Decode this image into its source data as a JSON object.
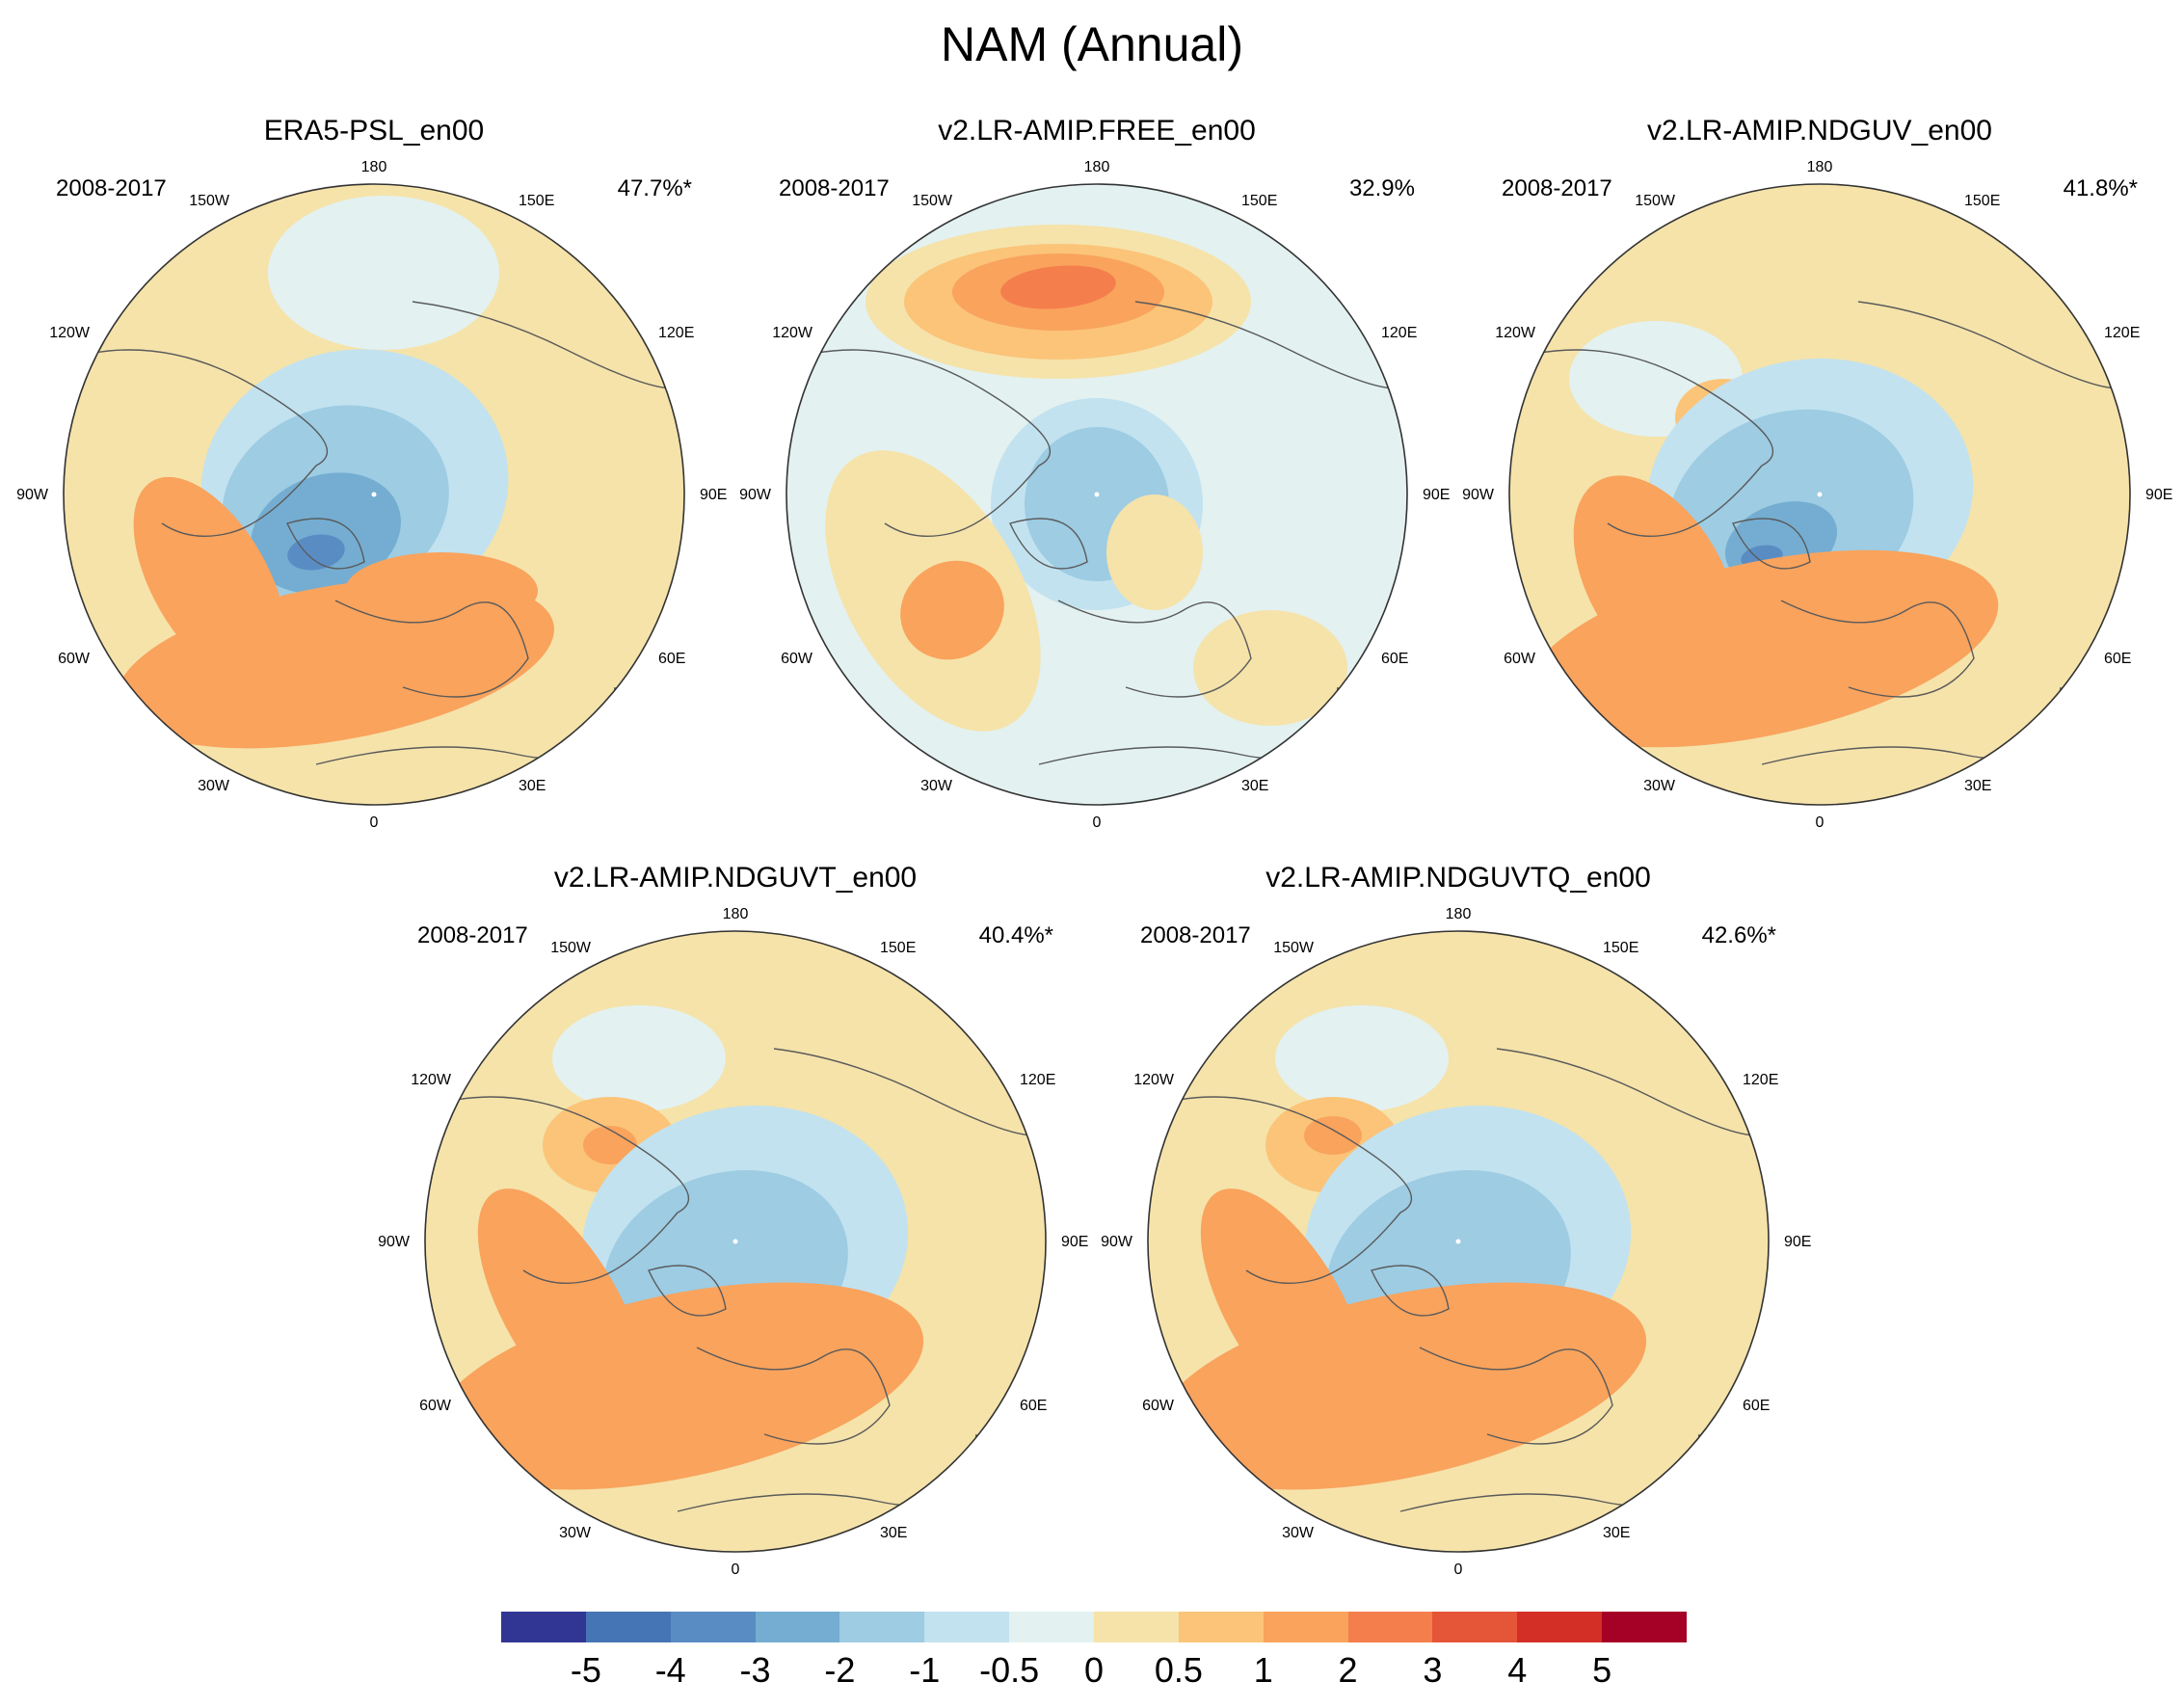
{
  "figure": {
    "title": "NAM (Annual)"
  },
  "colors": {
    "levels": [
      "#313695",
      "#4575b4",
      "#5a8cc4",
      "#74add1",
      "#9dcce3",
      "#c2e2ef",
      "#e3f1f1",
      "#f5e3aa",
      "#fbc479",
      "#f9a35d",
      "#f47e4c",
      "#e55537",
      "#d32f27",
      "#a50026"
    ],
    "coast": "#5a5a5a",
    "rim": "#333333"
  },
  "map_labels": {
    "lon_180": "180",
    "lon_150w": "150W",
    "lon_150e": "150E",
    "lon_120w": "120W",
    "lon_120e": "120E",
    "lon_90w": "90W",
    "lon_90e": "90E",
    "lon_60w": "60W",
    "lon_60e": "60E",
    "lon_30w": "30W",
    "lon_30e": "30E",
    "lon_0": "0"
  },
  "panels": [
    {
      "title": "ERA5-PSL_en00",
      "period": "2008-2017",
      "variance": "47.7%*"
    },
    {
      "title": "v2.LR-AMIP.FREE_en00",
      "period": "2008-2017",
      "variance": "32.9%"
    },
    {
      "title": "v2.LR-AMIP.NDGUV_en00",
      "period": "2008-2017",
      "variance": "41.8%*"
    },
    {
      "title": "v2.LR-AMIP.NDGUVT_en00",
      "period": "2008-2017",
      "variance": "40.4%*"
    },
    {
      "title": "v2.LR-AMIP.NDGUVTQ_en00",
      "period": "2008-2017",
      "variance": "42.6%*"
    }
  ],
  "colorbar": {
    "labels": [
      "-5",
      "-4",
      "-3",
      "-2",
      "-1",
      "-0.5",
      "0",
      "0.5",
      "1",
      "2",
      "3",
      "4",
      "5"
    ]
  }
}
